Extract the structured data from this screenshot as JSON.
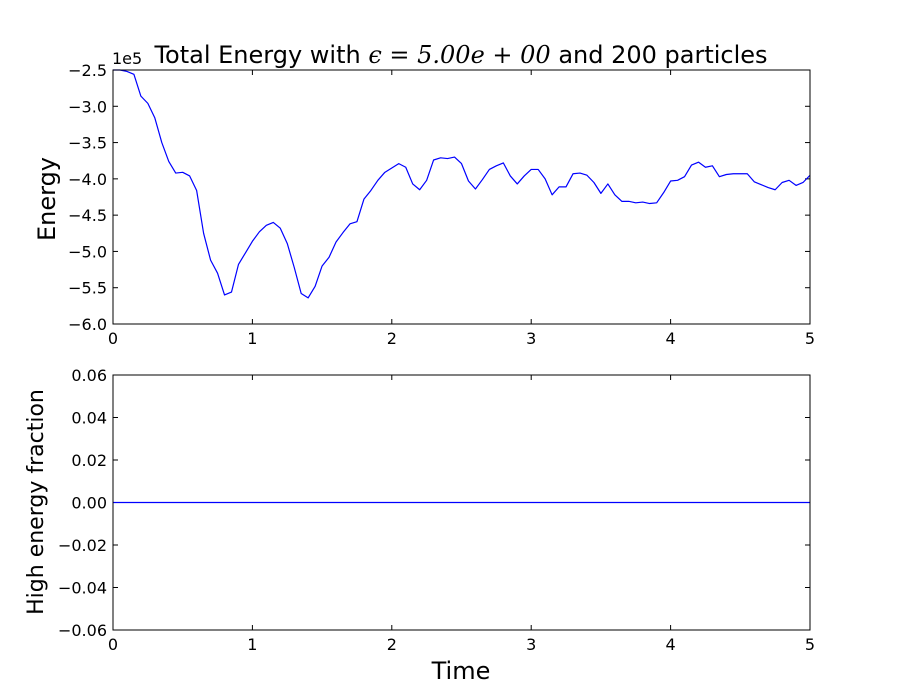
{
  "chart_data": [
    {
      "type": "line",
      "title_parts": [
        "Total Energy with ",
        "ϵ = 5.00e + 00",
        " and 200 particles"
      ],
      "xlabel": "",
      "ylabel": "Energy",
      "offset_text": "1e5",
      "xlim": [
        0,
        5
      ],
      "ylim": [
        -6.0,
        -2.5
      ],
      "xticks": [
        0,
        1,
        2,
        3,
        4,
        5
      ],
      "xtick_labels": [
        "0",
        "1",
        "2",
        "3",
        "4",
        "5"
      ],
      "yticks": [
        -2.5,
        -3.0,
        -3.5,
        -4.0,
        -4.5,
        -5.0,
        -5.5,
        -6.0
      ],
      "ytick_labels": [
        "−2.5",
        "−3.0",
        "−3.5",
        "−4.0",
        "−4.5",
        "−5.0",
        "−5.5",
        "−6.0"
      ],
      "color": "#0000ff",
      "series": [
        {
          "x": [
            0.0,
            0.05,
            0.1,
            0.15,
            0.2,
            0.25,
            0.3,
            0.35,
            0.4,
            0.45,
            0.5,
            0.55,
            0.6,
            0.65,
            0.7,
            0.75,
            0.8,
            0.85,
            0.9,
            0.95,
            1.0,
            1.05,
            1.1,
            1.15,
            1.2,
            1.25,
            1.3,
            1.35,
            1.4,
            1.45,
            1.5,
            1.55,
            1.6,
            1.65,
            1.7,
            1.75,
            1.8,
            1.85,
            1.9,
            1.95,
            2.0,
            2.05,
            2.1,
            2.15,
            2.2,
            2.25,
            2.3,
            2.35,
            2.4,
            2.45,
            2.5,
            2.55,
            2.6,
            2.65,
            2.7,
            2.75,
            2.8,
            2.85,
            2.9,
            2.95,
            3.0,
            3.05,
            3.1,
            3.15,
            3.2,
            3.25,
            3.3,
            3.35,
            3.4,
            3.45,
            3.5,
            3.55,
            3.6,
            3.65,
            3.7,
            3.75,
            3.8,
            3.85,
            3.9,
            3.95,
            4.0,
            4.05,
            4.1,
            4.15,
            4.2,
            4.25,
            4.3,
            4.35,
            4.4,
            4.45,
            4.5,
            4.55,
            4.6,
            4.65,
            4.7,
            4.75,
            4.8,
            4.85,
            4.9,
            4.95,
            5.0
          ],
          "y": [
            -2.5,
            -2.5,
            -2.52,
            -2.56,
            -2.86,
            -2.96,
            -3.16,
            -3.5,
            -3.76,
            -3.92,
            -3.91,
            -3.96,
            -4.16,
            -4.75,
            -5.12,
            -5.3,
            -5.6,
            -5.56,
            -5.18,
            -5.02,
            -4.86,
            -4.73,
            -4.64,
            -4.6,
            -4.68,
            -4.89,
            -5.22,
            -5.58,
            -5.64,
            -5.48,
            -5.2,
            -5.08,
            -4.87,
            -4.74,
            -4.62,
            -4.59,
            -4.28,
            -4.16,
            -4.02,
            -3.91,
            -3.85,
            -3.79,
            -3.84,
            -4.07,
            -4.15,
            -4.02,
            -3.74,
            -3.71,
            -3.72,
            -3.7,
            -3.79,
            -4.03,
            -4.14,
            -4.01,
            -3.87,
            -3.82,
            -3.78,
            -3.96,
            -4.07,
            -3.96,
            -3.87,
            -3.87,
            -4.0,
            -4.22,
            -4.11,
            -4.11,
            -3.93,
            -3.92,
            -3.95,
            -4.05,
            -4.2,
            -4.07,
            -4.22,
            -4.31,
            -4.31,
            -4.33,
            -4.32,
            -4.34,
            -4.33,
            -4.19,
            -4.03,
            -4.02,
            -3.97,
            -3.81,
            -3.77,
            -3.84,
            -3.82,
            -3.97,
            -3.94,
            -3.93,
            -3.93,
            -3.93,
            -4.04,
            -4.08,
            -4.12,
            -4.15,
            -4.05,
            -4.02,
            -4.09,
            -4.05,
            -3.95
          ]
        }
      ]
    },
    {
      "type": "line",
      "xlabel": "Time",
      "ylabel": "High energy fraction",
      "xlim": [
        0,
        5
      ],
      "ylim": [
        -0.06,
        0.06
      ],
      "xticks": [
        0,
        1,
        2,
        3,
        4,
        5
      ],
      "xtick_labels": [
        "0",
        "1",
        "2",
        "3",
        "4",
        "5"
      ],
      "yticks": [
        0.06,
        0.04,
        0.02,
        0.0,
        -0.02,
        -0.04,
        -0.06
      ],
      "ytick_labels": [
        "0.06",
        "0.04",
        "0.02",
        "0.00",
        "−0.02",
        "−0.04",
        "−0.06"
      ],
      "color": "#0000ff",
      "series": [
        {
          "x": [
            0,
            5
          ],
          "y": [
            0.0,
            0.0
          ]
        }
      ]
    }
  ]
}
